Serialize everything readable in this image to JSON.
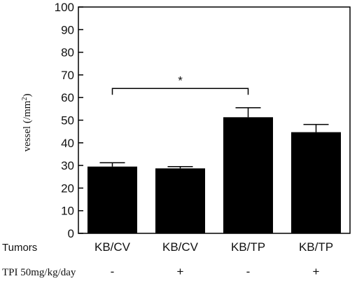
{
  "chart_data": {
    "type": "bar",
    "ylabel": "vessel (/mm²)",
    "ylim": [
      0,
      100
    ],
    "yticks": [
      "0",
      "10",
      "20",
      "30",
      "40",
      "50",
      "60",
      "70",
      "80",
      "90",
      "100"
    ],
    "categories": [
      "KB/CV",
      "KB/CV",
      "KB/TP",
      "KB/TP"
    ],
    "values": [
      29.5,
      28.7,
      51.3,
      44.7
    ],
    "errors": [
      1.7,
      0.8,
      4.2,
      3.4
    ],
    "bar_color": "#000000",
    "grid": false,
    "rows": [
      {
        "label": "Tumors",
        "values": [
          "KB/CV",
          "KB/CV",
          "KB/TP",
          "KB/TP"
        ]
      },
      {
        "label": "TPI 50mg/kg/day",
        "values": [
          "-",
          "+",
          "-",
          "+"
        ]
      }
    ],
    "annotation": {
      "text": "*",
      "from_category_index": 0,
      "to_category_index": 2,
      "bracket_y": 64
    }
  }
}
